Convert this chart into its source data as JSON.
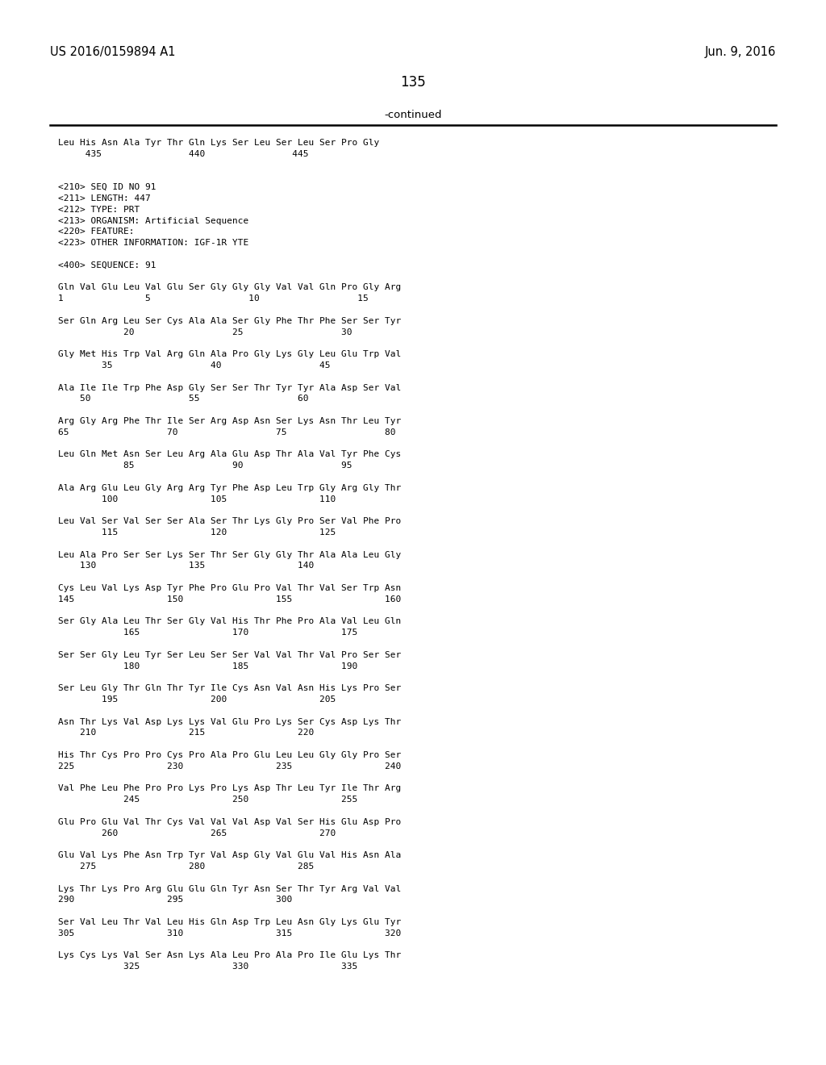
{
  "header_left": "US 2016/0159894 A1",
  "header_right": "Jun. 9, 2016",
  "page_number": "135",
  "continued_label": "-continued",
  "background_color": "#ffffff",
  "text_color": "#000000",
  "lines": [
    "Leu His Asn Ala Tyr Thr Gln Lys Ser Leu Ser Leu Ser Pro Gly",
    "     435                440                445",
    "",
    "",
    "<210> SEQ ID NO 91",
    "<211> LENGTH: 447",
    "<212> TYPE: PRT",
    "<213> ORGANISM: Artificial Sequence",
    "<220> FEATURE:",
    "<223> OTHER INFORMATION: IGF-1R YTE",
    "",
    "<400> SEQUENCE: 91",
    "",
    "Gln Val Glu Leu Val Glu Ser Gly Gly Gly Val Val Gln Pro Gly Arg",
    "1               5                  10                  15",
    "",
    "Ser Gln Arg Leu Ser Cys Ala Ala Ser Gly Phe Thr Phe Ser Ser Tyr",
    "            20                  25                  30",
    "",
    "Gly Met His Trp Val Arg Gln Ala Pro Gly Lys Gly Leu Glu Trp Val",
    "        35                  40                  45",
    "",
    "Ala Ile Ile Trp Phe Asp Gly Ser Ser Thr Tyr Tyr Ala Asp Ser Val",
    "    50                  55                  60",
    "",
    "Arg Gly Arg Phe Thr Ile Ser Arg Asp Asn Ser Lys Asn Thr Leu Tyr",
    "65                  70                  75                  80",
    "",
    "Leu Gln Met Asn Ser Leu Arg Ala Glu Asp Thr Ala Val Tyr Phe Cys",
    "            85                  90                  95",
    "",
    "Ala Arg Glu Leu Gly Arg Arg Tyr Phe Asp Leu Trp Gly Arg Gly Thr",
    "        100                 105                 110",
    "",
    "Leu Val Ser Val Ser Ser Ala Ser Thr Lys Gly Pro Ser Val Phe Pro",
    "        115                 120                 125",
    "",
    "Leu Ala Pro Ser Ser Lys Ser Thr Ser Gly Gly Thr Ala Ala Leu Gly",
    "    130                 135                 140",
    "",
    "Cys Leu Val Lys Asp Tyr Phe Pro Glu Pro Val Thr Val Ser Trp Asn",
    "145                 150                 155                 160",
    "",
    "Ser Gly Ala Leu Thr Ser Gly Val His Thr Phe Pro Ala Val Leu Gln",
    "            165                 170                 175",
    "",
    "Ser Ser Gly Leu Tyr Ser Leu Ser Ser Val Val Thr Val Pro Ser Ser",
    "            180                 185                 190",
    "",
    "Ser Leu Gly Thr Gln Thr Tyr Ile Cys Asn Val Asn His Lys Pro Ser",
    "        195                 200                 205",
    "",
    "Asn Thr Lys Val Asp Lys Lys Val Glu Pro Lys Ser Cys Asp Lys Thr",
    "    210                 215                 220",
    "",
    "His Thr Cys Pro Pro Cys Pro Ala Pro Glu Leu Leu Gly Gly Pro Ser",
    "225                 230                 235                 240",
    "",
    "Val Phe Leu Phe Pro Pro Lys Pro Lys Asp Thr Leu Tyr Ile Thr Arg",
    "            245                 250                 255",
    "",
    "Glu Pro Glu Val Thr Cys Val Val Val Asp Val Ser His Glu Asp Pro",
    "        260                 265                 270",
    "",
    "Glu Val Lys Phe Asn Trp Tyr Val Asp Gly Val Glu Val His Asn Ala",
    "    275                 280                 285",
    "",
    "Lys Thr Lys Pro Arg Glu Glu Gln Tyr Asn Ser Thr Tyr Arg Val Val",
    "290                 295                 300",
    "",
    "Ser Val Leu Thr Val Leu His Gln Asp Trp Leu Asn Gly Lys Glu Tyr",
    "305                 310                 315                 320",
    "",
    "Lys Cys Lys Val Ser Asn Lys Ala Leu Pro Ala Pro Ile Glu Lys Thr",
    "            325                 330                 335"
  ]
}
